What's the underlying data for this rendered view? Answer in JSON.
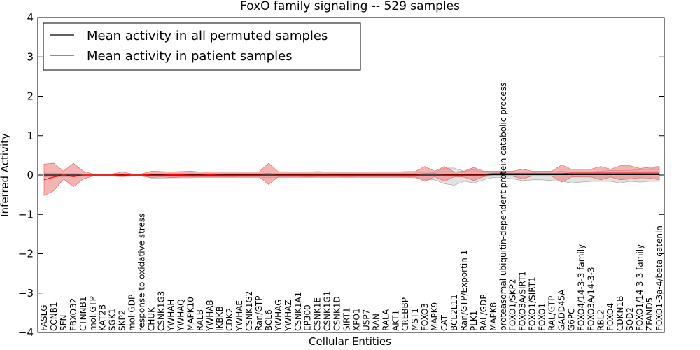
{
  "chart_data": {
    "type": "line",
    "title": "FoxO family signaling -- 529 samples",
    "xlabel": "Cellular Entities",
    "ylabel": "Inferred Activity",
    "ylim": [
      -4,
      4
    ],
    "yticks": [
      {
        "value": 4,
        "label": "4"
      },
      {
        "value": 3,
        "label": "3"
      },
      {
        "value": 2,
        "label": "2"
      },
      {
        "value": 1,
        "label": "1"
      },
      {
        "value": 0,
        "label": "0"
      },
      {
        "value": -1,
        "label": "−1"
      },
      {
        "value": -2,
        "label": "−2"
      },
      {
        "value": -3,
        "label": "−3"
      },
      {
        "value": -4,
        "label": "−4"
      }
    ],
    "legend": {
      "location": "top-left",
      "entries": [
        {
          "label": "Mean activity in all permuted samples",
          "color": "#000000"
        },
        {
          "label": "Mean activity in patient samples",
          "color": "#ff0000"
        }
      ]
    },
    "colors": {
      "patient_line": "#ff0000",
      "patient_band": "#f08080",
      "permuted_line": "#000000",
      "permuted_band": "#c8c8c8"
    },
    "categories": [
      "FASLG",
      "CCNB1",
      "SFN",
      "FBXO32",
      "CTNNB1",
      "mol:GTP",
      "KAT2B",
      "SGK1",
      "SKP2",
      "mol:GDP",
      "response to oxidative stress",
      "CHUK",
      "CSNK1G3",
      "YWHAH",
      "YWHAQ",
      "MAPK10",
      "RALB",
      "YWHAB",
      "IKBKB",
      "CDK2",
      "YWHAE",
      "CSNK1G2",
      "Ran/GTP",
      "BCL6",
      "YWHAG",
      "YWHAZ",
      "CSNK1A1",
      "EP300",
      "CSNK1E",
      "CSNK1G1",
      "CSNK1D",
      "SIRT1",
      "XPO1",
      "USP7",
      "RAN",
      "RALA",
      "AKT1",
      "CREBBP",
      "MST1",
      "FOXO3",
      "MAPK9",
      "CAT",
      "BCL2L11",
      "Ran/GTP/Exportin 1",
      "PLK1",
      "RAL/GDP",
      "MAPK8",
      "proteasomal ubiquitin-dependent protein catabolic process",
      "FOXO1/SKP2",
      "FOXO3A/SIRT1",
      "FOXO1/SIRT1",
      "FOXO1",
      "RAL/GTP",
      "GADD45A",
      "G6PC",
      "FOXO4/14-3-3 family",
      "FOXO3A/14-3-3",
      "RBL2",
      "FOXO4",
      "CDKN1B",
      "SOD2",
      "FOXO1/14-3-3 family",
      "ZFAND5",
      "FOXO1-3a-4/beta catenin"
    ],
    "series": [
      {
        "name": "Mean activity in patient samples",
        "values": [
          -0.12,
          -0.05,
          0,
          -0.04,
          0,
          0,
          0,
          0,
          0.02,
          0,
          0,
          0.02,
          0.02,
          0.01,
          0.01,
          0.02,
          0.02,
          0.01,
          0.02,
          0.02,
          0.02,
          0.02,
          0.02,
          0.03,
          0.02,
          0.02,
          0.02,
          0.02,
          0.02,
          0.02,
          0.02,
          0.02,
          0.02,
          0.02,
          0.02,
          0.02,
          0.02,
          0.02,
          0.02,
          0.03,
          0.03,
          0.02,
          0.02,
          0.02,
          0.02,
          0.02,
          0.04,
          0.04,
          0.04,
          0.04,
          0.04,
          0.04,
          0.04,
          0.04,
          0.05,
          0.05,
          0.05,
          0.05,
          0.05,
          0.05,
          0.05,
          0.05,
          0.05,
          0.05
        ],
        "upper": [
          0.28,
          0.3,
          0.1,
          0.3,
          0.1,
          0.03,
          0.03,
          0.03,
          0.08,
          0.03,
          0.03,
          0.1,
          0.09,
          0.08,
          0.09,
          0.1,
          0.08,
          0.08,
          0.08,
          0.08,
          0.08,
          0.08,
          0.08,
          0.3,
          0.08,
          0.08,
          0.08,
          0.08,
          0.09,
          0.08,
          0.08,
          0.08,
          0.08,
          0.08,
          0.08,
          0.08,
          0.08,
          0.09,
          0.09,
          0.22,
          0.1,
          0.22,
          0.08,
          0.1,
          0.2,
          0.1,
          0.1,
          0.1,
          0.1,
          0.15,
          0.1,
          0.1,
          0.1,
          0.26,
          0.15,
          0.15,
          0.15,
          0.22,
          0.15,
          0.24,
          0.24,
          0.17,
          0.2,
          0.22
        ],
        "lower": [
          -0.52,
          -0.4,
          -0.1,
          -0.3,
          -0.1,
          -0.03,
          -0.03,
          -0.03,
          -0.04,
          -0.03,
          -0.03,
          -0.06,
          -0.05,
          -0.06,
          -0.05,
          -0.05,
          -0.04,
          -0.05,
          -0.04,
          -0.05,
          -0.04,
          -0.04,
          -0.04,
          -0.24,
          -0.04,
          -0.04,
          -0.04,
          -0.05,
          -0.04,
          -0.04,
          -0.04,
          -0.05,
          -0.04,
          -0.04,
          -0.04,
          -0.04,
          -0.04,
          -0.05,
          -0.05,
          -0.16,
          -0.04,
          -0.16,
          -0.04,
          -0.05,
          -0.14,
          -0.04,
          -0.02,
          -0.02,
          -0.03,
          -0.1,
          -0.02,
          -0.03,
          -0.03,
          -0.18,
          -0.05,
          -0.05,
          -0.05,
          -0.12,
          -0.05,
          -0.12,
          -0.1,
          -0.07,
          -0.08,
          -0.12
        ]
      },
      {
        "name": "Mean activity in all permuted samples",
        "values": [
          0,
          0,
          0,
          0,
          0,
          0,
          0,
          0,
          0,
          0,
          0,
          0,
          0,
          0,
          0,
          0,
          0,
          0,
          0,
          0,
          0,
          0,
          0,
          0,
          0,
          0,
          0,
          0,
          0,
          0,
          0,
          0,
          0,
          0,
          0,
          0,
          0,
          0,
          0,
          0,
          0,
          0,
          0,
          0,
          0,
          0,
          0.01,
          0.01,
          0.01,
          0.01,
          0.01,
          0.01,
          0.01,
          0.01,
          0.01,
          0.01,
          0.01,
          0.01,
          0.01,
          0.01,
          0.01,
          0.01,
          0.01,
          0.01
        ],
        "upper": [
          0.05,
          0.05,
          0.04,
          0.04,
          0.03,
          0.02,
          0.02,
          0.02,
          0.03,
          0.02,
          0.02,
          0.04,
          0.04,
          0.04,
          0.04,
          0.04,
          0.04,
          0.04,
          0.04,
          0.04,
          0.04,
          0.04,
          0.04,
          0.05,
          0.04,
          0.04,
          0.04,
          0.04,
          0.04,
          0.04,
          0.04,
          0.04,
          0.04,
          0.04,
          0.04,
          0.04,
          0.04,
          0.05,
          0.05,
          0.08,
          0.06,
          0.18,
          0.18,
          0.1,
          0.14,
          0.08,
          0.08,
          0.08,
          0.08,
          0.08,
          0.08,
          0.08,
          0.08,
          0.1,
          0.08,
          0.08,
          0.08,
          0.1,
          0.12,
          0.12,
          0.12,
          0.14,
          0.16,
          0.22
        ],
        "lower": [
          -0.05,
          -0.05,
          -0.04,
          -0.04,
          -0.03,
          -0.02,
          -0.02,
          -0.02,
          -0.03,
          -0.02,
          -0.02,
          -0.08,
          -0.08,
          -0.07,
          -0.07,
          -0.07,
          -0.06,
          -0.06,
          -0.06,
          -0.06,
          -0.06,
          -0.06,
          -0.06,
          -0.07,
          -0.06,
          -0.06,
          -0.06,
          -0.06,
          -0.06,
          -0.06,
          -0.06,
          -0.06,
          -0.06,
          -0.06,
          -0.06,
          -0.06,
          -0.06,
          -0.06,
          -0.07,
          -0.12,
          -0.12,
          -0.22,
          -0.26,
          -0.16,
          -0.2,
          -0.12,
          -0.06,
          -0.06,
          -0.1,
          -0.14,
          -0.12,
          -0.12,
          -0.14,
          -0.16,
          -0.2,
          -0.18,
          -0.16,
          -0.16,
          -0.16,
          -0.2,
          -0.16,
          -0.18,
          -0.16,
          -0.16
        ]
      }
    ]
  }
}
